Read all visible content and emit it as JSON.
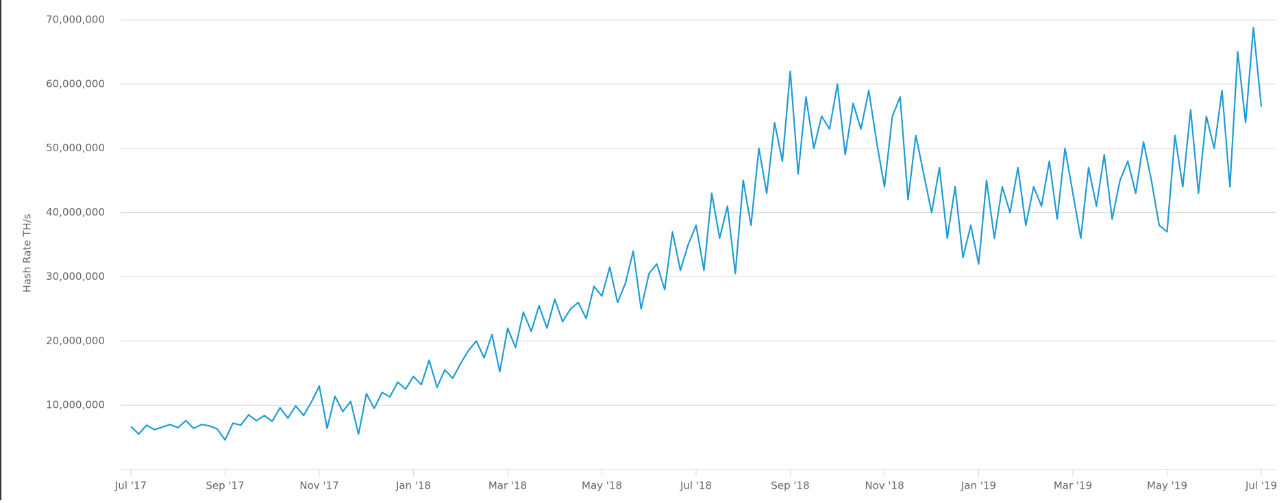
{
  "chart_data": {
    "type": "line",
    "y_label": "Hash Rate TH/s",
    "categories": [
      "Jul '17",
      null,
      null,
      null,
      null,
      null,
      null,
      null,
      null,
      null,
      null,
      null,
      "Sep '17",
      null,
      null,
      null,
      null,
      null,
      null,
      null,
      null,
      null,
      null,
      null,
      "Nov '17",
      null,
      null,
      null,
      null,
      null,
      null,
      null,
      null,
      null,
      null,
      null,
      "Jan '18",
      null,
      null,
      null,
      null,
      null,
      null,
      null,
      null,
      null,
      null,
      null,
      "Mar '18",
      null,
      null,
      null,
      null,
      null,
      null,
      null,
      null,
      null,
      null,
      null,
      "May '18",
      null,
      null,
      null,
      null,
      null,
      null,
      null,
      null,
      null,
      null,
      null,
      "Jul '18",
      null,
      null,
      null,
      null,
      null,
      null,
      null,
      null,
      null,
      null,
      null,
      "Sep '18",
      null,
      null,
      null,
      null,
      null,
      null,
      null,
      null,
      null,
      null,
      null,
      "Nov '18",
      null,
      null,
      null,
      null,
      null,
      null,
      null,
      null,
      null,
      null,
      null,
      "Jan '19",
      null,
      null,
      null,
      null,
      null,
      null,
      null,
      null,
      null,
      null,
      null,
      "Mar '19",
      null,
      null,
      null,
      null,
      null,
      null,
      null,
      null,
      null,
      null,
      null,
      "May '19",
      null,
      null,
      null,
      null,
      null,
      null,
      null,
      null,
      null,
      null,
      null,
      "Jul '19"
    ],
    "series": [
      {
        "name": "Hash Rate",
        "color": "#1e9bd6",
        "values": [
          6700000,
          5500000,
          6900000,
          6200000,
          6600000,
          7000000,
          6500000,
          7600000,
          6400000,
          7000000,
          6800000,
          6300000,
          4600000,
          7200000,
          6900000,
          8500000,
          7600000,
          8400000,
          7500000,
          9600000,
          8000000,
          9900000,
          8400000,
          10500000,
          13000000,
          6400000,
          11400000,
          9000000,
          10600000,
          5500000,
          11800000,
          9500000,
          12000000,
          11300000,
          13600000,
          12500000,
          14500000,
          13200000,
          17000000,
          12800000,
          15500000,
          14200000,
          16500000,
          18500000,
          20000000,
          17400000,
          21000000,
          15200000,
          22000000,
          19000000,
          24500000,
          21500000,
          25500000,
          22000000,
          26500000,
          23000000,
          25000000,
          26000000,
          23500000,
          28500000,
          27000000,
          31500000,
          26000000,
          29000000,
          34000000,
          25000000,
          30500000,
          32000000,
          28000000,
          37000000,
          31000000,
          35000000,
          38000000,
          31000000,
          43000000,
          36000000,
          41000000,
          30500000,
          45000000,
          38000000,
          50000000,
          43000000,
          54000000,
          48000000,
          62000000,
          46000000,
          58000000,
          50000000,
          55000000,
          53000000,
          60000000,
          49000000,
          57000000,
          53000000,
          59000000,
          51000000,
          44000000,
          55000000,
          58000000,
          42000000,
          52000000,
          46000000,
          40000000,
          47000000,
          36000000,
          44000000,
          33000000,
          38000000,
          32000000,
          45000000,
          36000000,
          44000000,
          40000000,
          47000000,
          38000000,
          44000000,
          41000000,
          48000000,
          39000000,
          50000000,
          43000000,
          36000000,
          47000000,
          41000000,
          49000000,
          39000000,
          45000000,
          48000000,
          43000000,
          51000000,
          45000000,
          38000000,
          37000000,
          52000000,
          44000000,
          56000000,
          43000000,
          55000000,
          50000000,
          59000000,
          44000000,
          65000000,
          54000000,
          68800000,
          56500000
        ]
      }
    ],
    "ylim": [
      0,
      70000000
    ],
    "yticks": [
      {
        "value": 10000000,
        "label": "10,000,000"
      },
      {
        "value": 20000000,
        "label": "20,000,000"
      },
      {
        "value": 30000000,
        "label": "30,000,000"
      },
      {
        "value": 40000000,
        "label": "40,000,000"
      },
      {
        "value": 50000000,
        "label": "50,000,000"
      },
      {
        "value": 60000000,
        "label": "60,000,000"
      },
      {
        "value": 70000000,
        "label": "70,000,000"
      }
    ],
    "grid": true
  }
}
